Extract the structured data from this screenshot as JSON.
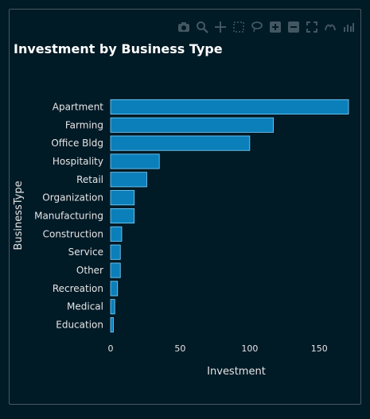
{
  "chart_data": {
    "type": "bar",
    "orientation": "horizontal",
    "title": "Investment by Business Type",
    "xlabel": "Investment",
    "ylabel": "BusinessType",
    "categories": [
      "Apartment",
      "Farming",
      "Office Bldg",
      "Hospitality",
      "Retail",
      "Organization",
      "Manufacturing",
      "Construction",
      "Service",
      "Other",
      "Recreation",
      "Medical",
      "Education"
    ],
    "values": [
      171,
      117,
      100,
      35,
      26,
      17,
      17,
      8,
      7,
      7,
      5,
      3,
      2
    ],
    "xlim": [
      0,
      175
    ],
    "xticks": [
      0,
      50,
      100,
      150
    ],
    "grid": false,
    "colors": {
      "bar": "#0a7fba",
      "bar_edge": "#7fd4ff",
      "background": "#001a26",
      "text": "#e6e6e6"
    }
  },
  "modebar": {
    "icons": [
      "camera-icon",
      "zoom-icon",
      "pan-icon",
      "box-select-icon",
      "lasso-icon",
      "zoom-in-icon",
      "zoom-out-icon",
      "autoscale-icon",
      "reset-axes-icon",
      "plotly-logo-icon"
    ]
  }
}
